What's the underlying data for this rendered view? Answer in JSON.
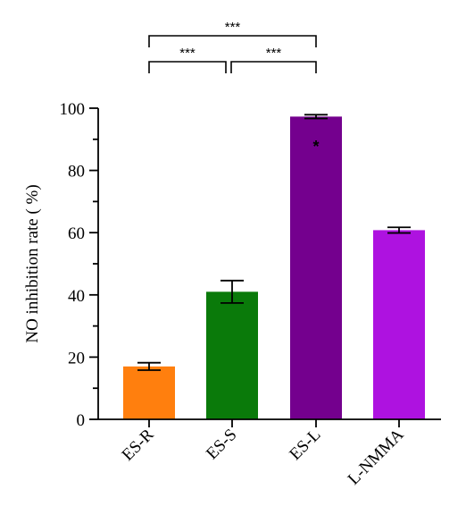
{
  "chart_data": {
    "type": "bar",
    "categories": [
      "ES-R",
      "ES-S",
      "ES-L",
      "L-NMMA"
    ],
    "values": [
      17.0,
      41.0,
      97.3,
      60.8
    ],
    "errors": [
      1.2,
      3.6,
      0.6,
      0.9
    ],
    "colors": [
      "#ff7f0e",
      "#0a7a0a",
      "#74008e",
      "#ae12e0"
    ],
    "ylabel": "NO inhibition rate ( %)",
    "xlabel": "",
    "ylim": [
      0,
      100
    ],
    "yticks": [
      0,
      20,
      40,
      60,
      80,
      100
    ],
    "grid": false,
    "bar_annotations": [
      {
        "category": "ES-L",
        "text": "*",
        "color": "#ffffff"
      }
    ],
    "significance": [
      {
        "from": "ES-R",
        "to": "ES-L",
        "label": "***"
      },
      {
        "from": "ES-R",
        "to": "ES-S",
        "label": "***"
      },
      {
        "from": "ES-S",
        "to": "ES-L",
        "label": "***"
      }
    ]
  }
}
